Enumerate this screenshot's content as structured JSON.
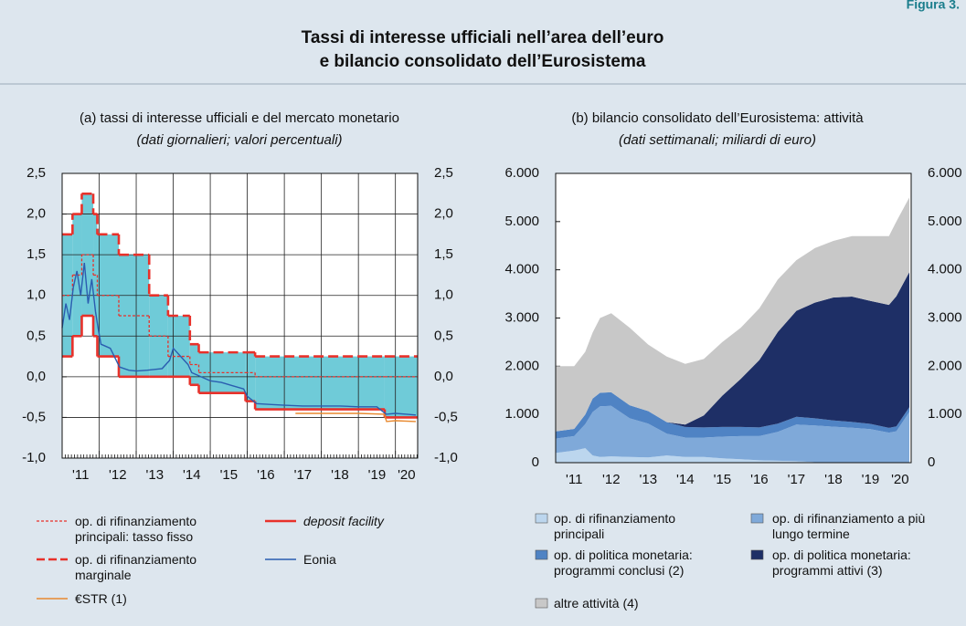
{
  "figure_label": "Figura 3.",
  "title_lines": [
    "Tassi di interesse ufficiali nell’area dell’euro",
    "e bilancio consolidato dell’Eurosistema"
  ],
  "chart_data": [
    {
      "type": "line",
      "title": "(a) tassi di interesse ufficiali e del mercato monetario",
      "subtitle": "(dati giornalieri; valori percentuali)",
      "x": [
        2011.0,
        2011.28,
        2011.53,
        2011.84,
        2011.95,
        2012.53,
        2013.35,
        2013.86,
        2014.45,
        2014.69,
        2015.95,
        2016.21,
        2019.71
      ],
      "xlim": [
        2011.0,
        2020.6
      ],
      "xticks": [
        {
          "value": 2011.5,
          "label": "'11"
        },
        {
          "value": 2012.5,
          "label": "'12"
        },
        {
          "value": 2013.5,
          "label": "'13"
        },
        {
          "value": 2014.5,
          "label": "'14"
        },
        {
          "value": 2015.5,
          "label": "'15"
        },
        {
          "value": 2016.5,
          "label": "'16"
        },
        {
          "value": 2017.5,
          "label": "'17"
        },
        {
          "value": 2018.5,
          "label": "'18"
        },
        {
          "value": 2019.5,
          "label": "'19"
        },
        {
          "value": 2020.3,
          "label": "'20"
        }
      ],
      "xgrid": [
        2012,
        2013,
        2014,
        2015,
        2016,
        2017,
        2018,
        2019,
        2020
      ],
      "ylim": [
        -1.0,
        2.5
      ],
      "yticks": [
        {
          "value": -1.0,
          "label": "-1,0"
        },
        {
          "value": -0.5,
          "label": "-0,5"
        },
        {
          "value": 0.0,
          "label": "0,0"
        },
        {
          "value": 0.5,
          "label": "0,5"
        },
        {
          "value": 1.0,
          "label": "1,0"
        },
        {
          "value": 1.5,
          "label": "1,5"
        },
        {
          "value": 2.0,
          "label": "2,0"
        },
        {
          "value": 2.5,
          "label": "2,5"
        }
      ],
      "grid": true,
      "corridor_color": "#6fcbd8",
      "series": [
        {
          "name": "op. di rifinanziamento principali: tasso fisso",
          "color": "#e8312a",
          "style": "dotted",
          "step": true,
          "values": [
            1.0,
            1.25,
            1.5,
            1.25,
            1.0,
            0.75,
            0.5,
            0.25,
            0.15,
            0.05,
            0.05,
            0.0,
            0.0
          ]
        },
        {
          "name": "op. di rifinanziamento marginale",
          "color": "#e8312a",
          "style": "dashed",
          "step": true,
          "values": [
            1.75,
            2.0,
            2.25,
            2.0,
            1.75,
            1.5,
            1.0,
            0.75,
            0.4,
            0.3,
            0.3,
            0.25,
            0.25
          ]
        },
        {
          "name": "deposit facility",
          "color": "#e8312a",
          "style": "solid",
          "step": true,
          "italic": true,
          "values": [
            0.25,
            0.5,
            0.75,
            0.5,
            0.25,
            0.0,
            0.0,
            0.0,
            -0.1,
            -0.2,
            -0.3,
            -0.4,
            -0.5
          ]
        },
        {
          "name": "Eonia",
          "color": "#2a5db0",
          "style": "thin",
          "x": [
            2011.0,
            2011.1,
            2011.2,
            2011.3,
            2011.4,
            2011.5,
            2011.6,
            2011.7,
            2011.8,
            2011.9,
            2011.97,
            2012.05,
            2012.3,
            2012.55,
            2012.8,
            2013.0,
            2013.3,
            2013.5,
            2013.7,
            2013.9,
            2014.0,
            2014.2,
            2014.4,
            2014.5,
            2014.75,
            2015.0,
            2015.3,
            2015.6,
            2015.9,
            2016.0,
            2016.25,
            2016.6,
            2017.0,
            2017.5,
            2018.0,
            2018.5,
            2019.0,
            2019.5,
            2019.75,
            2020.0,
            2020.3,
            2020.55
          ],
          "values": [
            0.6,
            0.9,
            0.7,
            1.1,
            1.3,
            1.0,
            1.4,
            0.9,
            1.2,
            0.8,
            0.6,
            0.4,
            0.35,
            0.12,
            0.08,
            0.07,
            0.08,
            0.09,
            0.1,
            0.2,
            0.35,
            0.25,
            0.15,
            0.05,
            0.0,
            -0.05,
            -0.07,
            -0.11,
            -0.15,
            -0.24,
            -0.33,
            -0.34,
            -0.35,
            -0.36,
            -0.36,
            -0.36,
            -0.37,
            -0.37,
            -0.46,
            -0.45,
            -0.46,
            -0.47
          ]
        },
        {
          "name": "€STR (1)",
          "color": "#e8892f",
          "style": "thin",
          "x": [
            2017.3,
            2018.0,
            2018.5,
            2019.0,
            2019.7,
            2019.76,
            2020.0,
            2020.55
          ],
          "values": [
            -0.45,
            -0.45,
            -0.45,
            -0.45,
            -0.46,
            -0.55,
            -0.54,
            -0.55
          ]
        }
      ]
    },
    {
      "type": "stacked_area",
      "title": "(b) bilancio consolidato dell’Eurosistema: attività",
      "subtitle": "(dati settimanali; miliardi di euro)",
      "x": [
        2011.0,
        2011.5,
        2011.8,
        2012.0,
        2012.2,
        2012.5,
        2013.0,
        2013.5,
        2014.0,
        2014.5,
        2015.0,
        2015.5,
        2016.0,
        2016.5,
        2017.0,
        2017.5,
        2018.0,
        2018.5,
        2019.0,
        2019.5,
        2020.0,
        2020.2,
        2020.55
      ],
      "xlim": [
        2011.0,
        2020.6
      ],
      "xticks": [
        {
          "value": 2011.5,
          "label": "'11"
        },
        {
          "value": 2012.5,
          "label": "'12"
        },
        {
          "value": 2013.5,
          "label": "'13"
        },
        {
          "value": 2014.5,
          "label": "'14"
        },
        {
          "value": 2015.5,
          "label": "'15"
        },
        {
          "value": 2016.5,
          "label": "'16"
        },
        {
          "value": 2017.5,
          "label": "'17"
        },
        {
          "value": 2018.5,
          "label": "'18"
        },
        {
          "value": 2019.5,
          "label": "'19"
        },
        {
          "value": 2020.3,
          "label": "'20"
        }
      ],
      "ylim": [
        0,
        6000
      ],
      "yticks": [
        0,
        {
          "value": 1000,
          "label": "1.000"
        },
        {
          "value": 2000,
          "label": "2.000"
        },
        {
          "value": 3000,
          "label": "3.000"
        },
        {
          "value": 4000,
          "label": "4.000"
        },
        {
          "value": 5000,
          "label": "5.000"
        },
        {
          "value": 6000,
          "label": "6.000"
        }
      ],
      "grid": false,
      "series": [
        {
          "name": "op. di rifinanziamento principali",
          "color": "#bcd6ee",
          "values": [
            200,
            250,
            300,
            150,
            120,
            130,
            120,
            110,
            150,
            120,
            120,
            90,
            70,
            50,
            40,
            30,
            10,
            5,
            5,
            5,
            2,
            2,
            1
          ]
        },
        {
          "name": "op. di rifinanziamento a più lungo termine",
          "color": "#7fa9d9",
          "values": [
            300,
            300,
            500,
            900,
            1050,
            1050,
            800,
            700,
            450,
            400,
            400,
            450,
            480,
            500,
            600,
            760,
            760,
            740,
            720,
            690,
            620,
            650,
            1050
          ]
        },
        {
          "name": "op. di politica monetaria: programmi conclusi (2)",
          "color": "#4f83c4",
          "values": [
            150,
            150,
            200,
            280,
            280,
            280,
            270,
            260,
            240,
            220,
            210,
            200,
            190,
            180,
            170,
            160,
            150,
            130,
            120,
            110,
            100,
            100,
            100
          ]
        },
        {
          "name": "op. di politica monetaria: programmi attivi (3)",
          "color": "#1e2f66",
          "values": [
            0,
            0,
            0,
            0,
            0,
            0,
            0,
            0,
            0,
            50,
            250,
            650,
            1000,
            1400,
            1900,
            2200,
            2400,
            2550,
            2600,
            2550,
            2550,
            2700,
            2800
          ]
        },
        {
          "name": "altre attività (4)",
          "color": "#c8c8c8",
          "values": [
            1350,
            1300,
            1300,
            1370,
            1550,
            1640,
            1610,
            1380,
            1360,
            1260,
            1170,
            1110,
            1060,
            1070,
            1090,
            1050,
            1130,
            1175,
            1255,
            1345,
            1428,
            1548,
            1549
          ]
        }
      ]
    }
  ]
}
